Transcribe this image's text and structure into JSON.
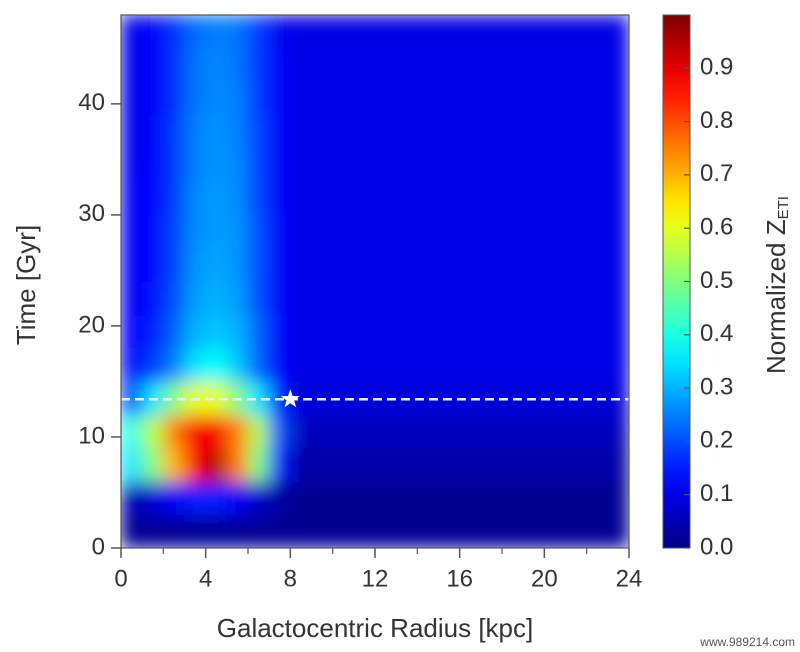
{
  "chart_data": {
    "type": "heatmap",
    "xlabel": "Galactocentric Radius [kpc]",
    "ylabel": "Time [Gyr]",
    "colorbar_label": "Normalized Z",
    "colorbar_label_subscript": "ETI",
    "colormap": "jet",
    "xlim": [
      0,
      24
    ],
    "ylim": [
      0,
      48
    ],
    "zlim": [
      0,
      1
    ],
    "xticks": [
      0,
      4,
      8,
      12,
      16,
      20,
      24
    ],
    "xminorticks": [
      2,
      6,
      10,
      14,
      18,
      22
    ],
    "yticks": [
      0,
      10,
      20,
      30,
      40
    ],
    "zticks": [
      {
        "value": 0,
        "label": "0.0"
      },
      0.1,
      0.2,
      0.3,
      0.4,
      0.5,
      0.6,
      0.7,
      0.8,
      0.9
    ],
    "xbins": [
      0,
      1,
      2,
      3,
      4,
      5,
      6,
      7,
      8,
      10,
      12,
      14,
      16,
      18,
      20,
      22,
      24
    ],
    "ybins": [
      0,
      3,
      6,
      9,
      12,
      15,
      18,
      21,
      24,
      27,
      30,
      33,
      36,
      39,
      42,
      45,
      48
    ],
    "values": [
      [
        0.02,
        0.02,
        0.02,
        0.02,
        0.02,
        0.02,
        0.02,
        0.02,
        0.02,
        0.02,
        0.02,
        0.02,
        0.02,
        0.02,
        0.02,
        0.02
      ],
      [
        0.05,
        0.08,
        0.12,
        0.15,
        0.15,
        0.12,
        0.07,
        0.03,
        0.02,
        0.02,
        0.02,
        0.02,
        0.02,
        0.02,
        0.02,
        0.02
      ],
      [
        0.35,
        0.5,
        0.7,
        0.88,
        0.95,
        0.75,
        0.5,
        0.15,
        0.04,
        0.04,
        0.04,
        0.04,
        0.04,
        0.04,
        0.04,
        0.04
      ],
      [
        0.4,
        0.55,
        0.75,
        0.88,
        0.88,
        0.75,
        0.55,
        0.2,
        0.06,
        0.06,
        0.06,
        0.06,
        0.06,
        0.06,
        0.06,
        0.06
      ],
      [
        0.2,
        0.35,
        0.5,
        0.6,
        0.6,
        0.5,
        0.35,
        0.15,
        0.09,
        0.09,
        0.09,
        0.09,
        0.09,
        0.09,
        0.09,
        0.09
      ],
      [
        0.12,
        0.18,
        0.25,
        0.35,
        0.38,
        0.32,
        0.22,
        0.12,
        0.1,
        0.1,
        0.1,
        0.1,
        0.1,
        0.1,
        0.1,
        0.1
      ],
      [
        0.12,
        0.15,
        0.22,
        0.3,
        0.32,
        0.3,
        0.22,
        0.12,
        0.1,
        0.1,
        0.1,
        0.1,
        0.1,
        0.1,
        0.1,
        0.1
      ],
      [
        0.12,
        0.14,
        0.2,
        0.28,
        0.3,
        0.28,
        0.2,
        0.12,
        0.1,
        0.1,
        0.1,
        0.1,
        0.1,
        0.1,
        0.1,
        0.1
      ],
      [
        0.12,
        0.13,
        0.19,
        0.27,
        0.29,
        0.27,
        0.2,
        0.12,
        0.1,
        0.1,
        0.1,
        0.1,
        0.1,
        0.1,
        0.1,
        0.1
      ],
      [
        0.12,
        0.13,
        0.19,
        0.26,
        0.28,
        0.27,
        0.2,
        0.12,
        0.1,
        0.1,
        0.1,
        0.1,
        0.1,
        0.1,
        0.1,
        0.1
      ],
      [
        0.12,
        0.13,
        0.18,
        0.26,
        0.28,
        0.26,
        0.19,
        0.12,
        0.1,
        0.1,
        0.1,
        0.1,
        0.1,
        0.1,
        0.1,
        0.1
      ],
      [
        0.11,
        0.13,
        0.18,
        0.25,
        0.27,
        0.26,
        0.19,
        0.12,
        0.1,
        0.1,
        0.1,
        0.1,
        0.1,
        0.1,
        0.1,
        0.1
      ],
      [
        0.11,
        0.12,
        0.18,
        0.25,
        0.27,
        0.25,
        0.19,
        0.12,
        0.1,
        0.1,
        0.1,
        0.1,
        0.1,
        0.1,
        0.1,
        0.1
      ],
      [
        0.11,
        0.12,
        0.17,
        0.24,
        0.26,
        0.25,
        0.18,
        0.12,
        0.1,
        0.1,
        0.1,
        0.1,
        0.1,
        0.1,
        0.1,
        0.1
      ],
      [
        0.11,
        0.12,
        0.17,
        0.24,
        0.26,
        0.24,
        0.18,
        0.12,
        0.1,
        0.1,
        0.1,
        0.1,
        0.1,
        0.1,
        0.1,
        0.1
      ],
      [
        0.11,
        0.12,
        0.17,
        0.23,
        0.25,
        0.24,
        0.18,
        0.11,
        0.1,
        0.1,
        0.1,
        0.1,
        0.1,
        0.1,
        0.1,
        0.1
      ]
    ],
    "hline": 13.4,
    "marker": {
      "x": 8,
      "y": 13.4
    },
    "watermark": "www.989214.com"
  }
}
